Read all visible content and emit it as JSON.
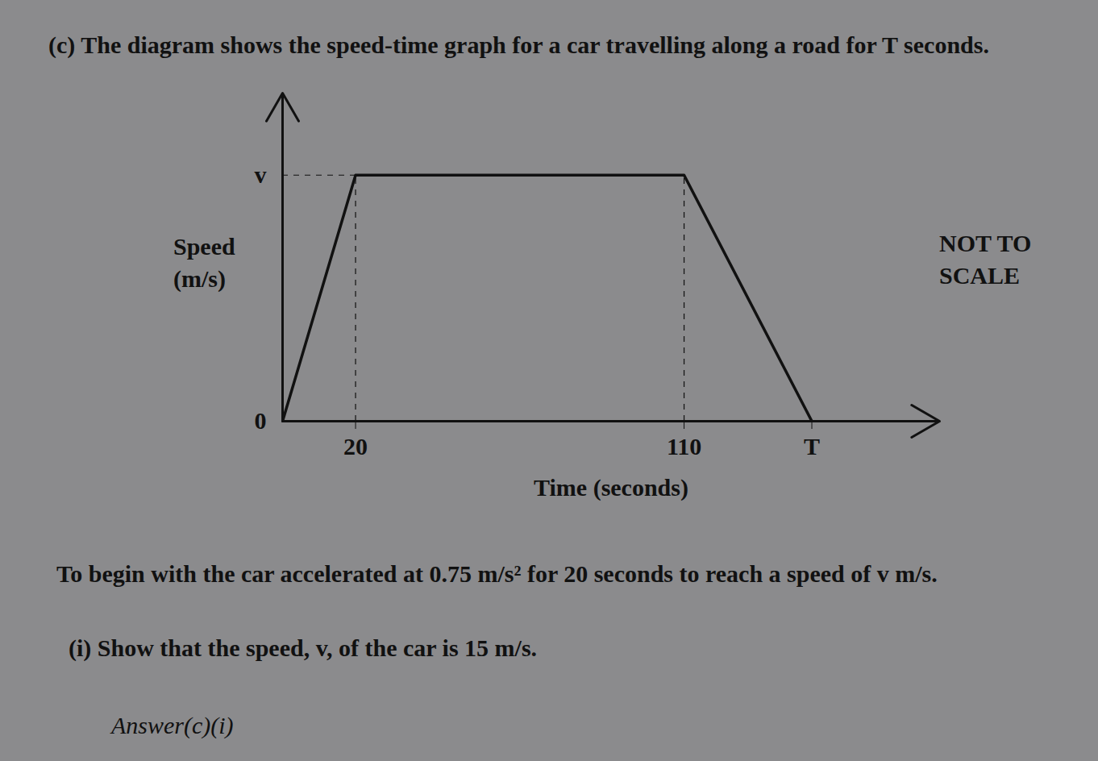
{
  "chart_data": {
    "type": "line",
    "title": "(c) The diagram shows the speed-time graph for a car travelling along a road for T seconds.",
    "x_label": "Time (seconds)",
    "y_label": "Speed (m/s)",
    "x": [
      0,
      20,
      110,
      145
    ],
    "values": [
      0,
      15,
      15,
      0
    ],
    "xlim": [
      0,
      180
    ],
    "ylim": [
      0,
      20
    ],
    "xticks": [
      20,
      110,
      {
        "value": 145,
        "label": "T"
      }
    ],
    "yticks": [
      0,
      {
        "value": 15,
        "label": "v"
      }
    ],
    "color": "#111111",
    "annotations": [
      "NOT TO SCALE"
    ]
  },
  "text": {
    "intro": "To begin with the car accelerated at 0.75 m/s² for 20 seconds to reach a speed of v m/s.",
    "question": "(i) Show that the speed, v, of the car is 15 m/s.",
    "answer": "Answer(c)(i)"
  }
}
